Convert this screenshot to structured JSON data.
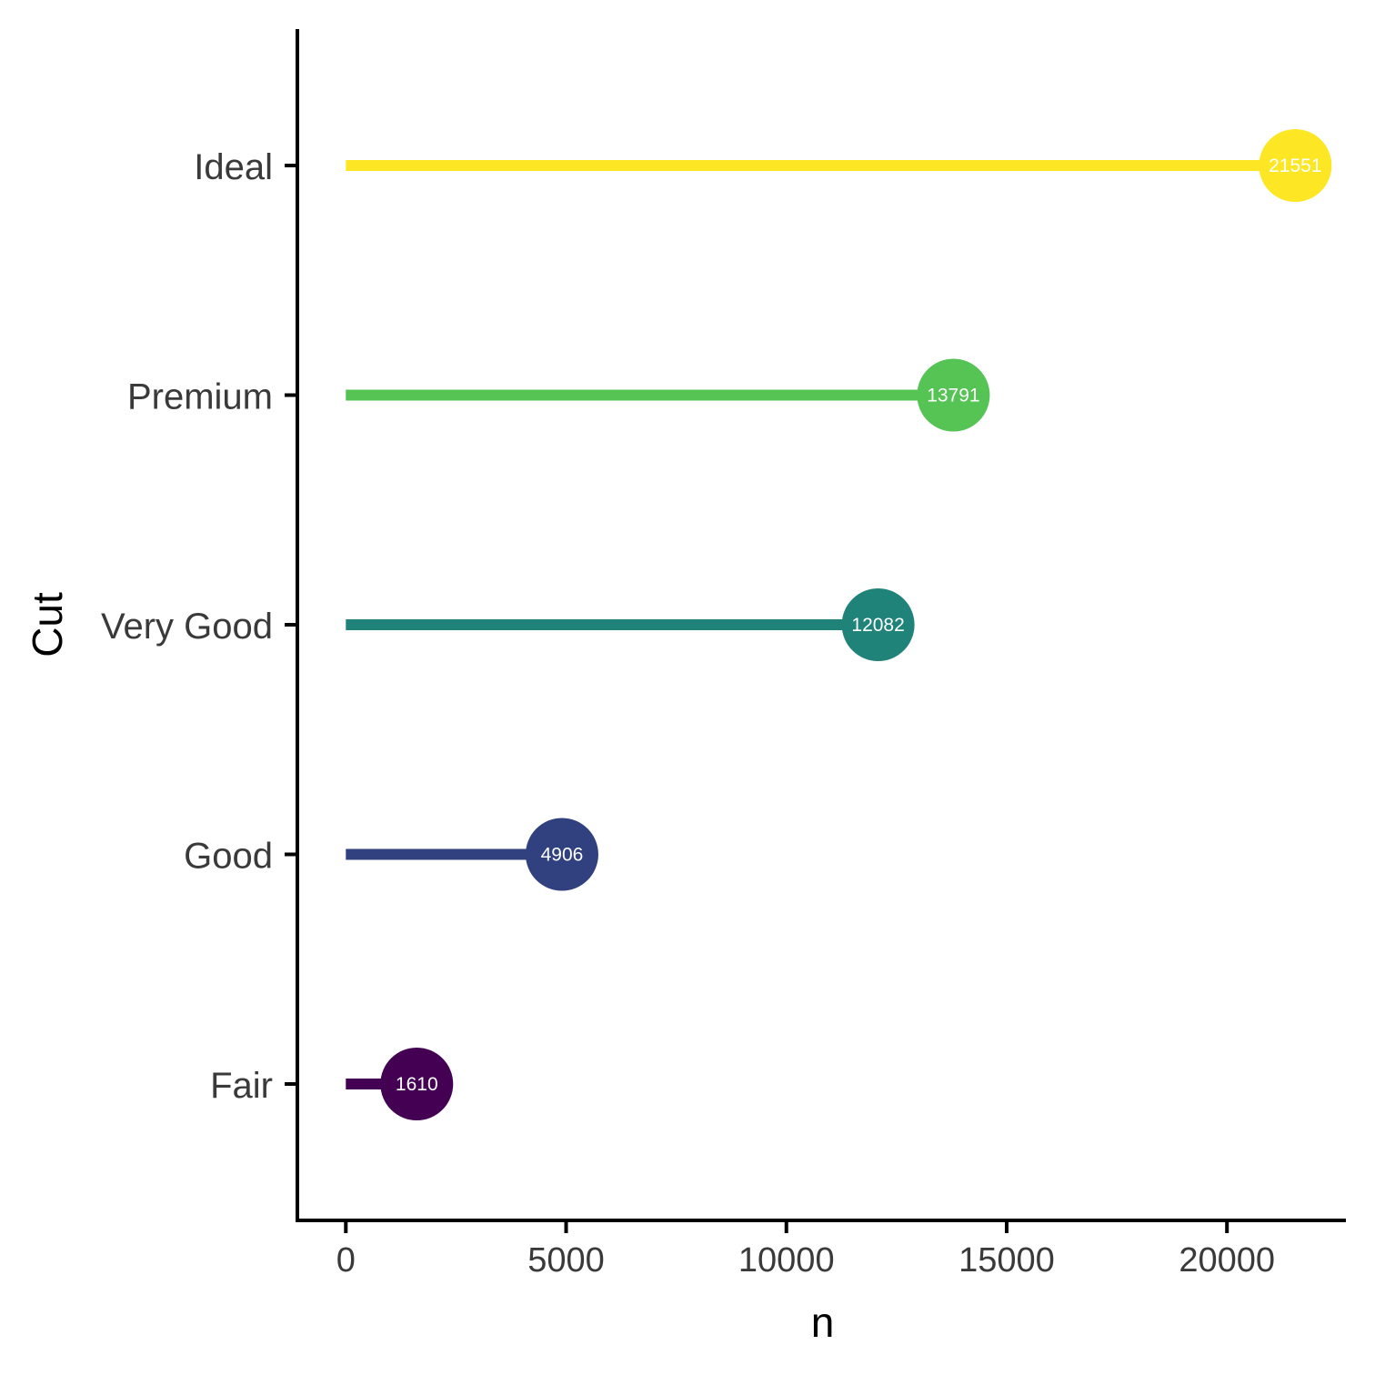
{
  "chart_data": {
    "type": "lollipop",
    "orientation": "horizontal",
    "title": "",
    "xlabel": "n",
    "ylabel": "Cut",
    "xlim": [
      -1100,
      22700
    ],
    "x_ticks": [
      0,
      5000,
      10000,
      15000,
      20000
    ],
    "x_tick_labels": [
      "0",
      "5000",
      "10000",
      "15000",
      "20000"
    ],
    "categories": [
      "Fair",
      "Good",
      "Very Good",
      "Premium",
      "Ideal"
    ],
    "values": [
      1610,
      4906,
      12082,
      13791,
      21551
    ],
    "value_labels": [
      "1610",
      "4906",
      "12082",
      "13791",
      "21551"
    ],
    "colors": [
      "#440154",
      "#31417f",
      "#20837a",
      "#55c454",
      "#fde725"
    ],
    "grid": false,
    "legend": "none"
  }
}
